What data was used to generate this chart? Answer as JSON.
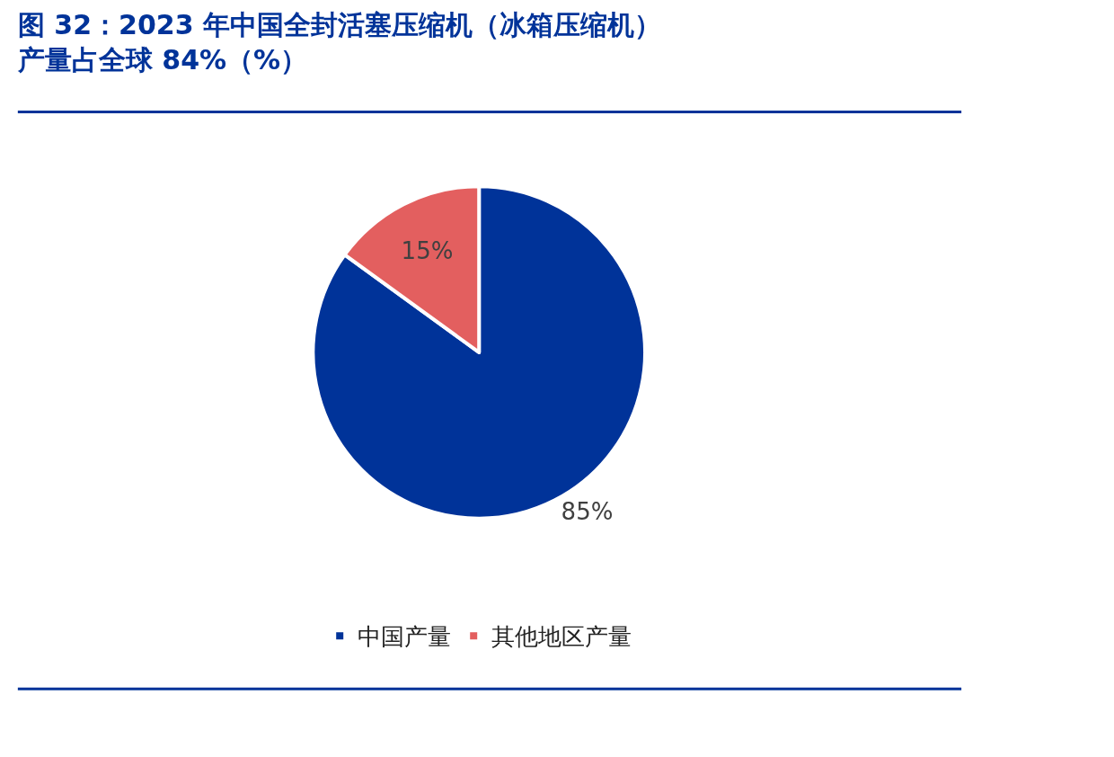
{
  "chart_data": {
    "type": "pie",
    "title": "图 32：2023 年中国全封活塞压缩机（冰箱压缩机）产量占全球 84%（%）",
    "categories": [
      "中国产量",
      "其他地区产量"
    ],
    "values": [
      85,
      15
    ],
    "colors": [
      "#003399",
      "#e35f5f"
    ],
    "value_labels": [
      "85%",
      "15%"
    ],
    "legend": "bottom"
  }
}
